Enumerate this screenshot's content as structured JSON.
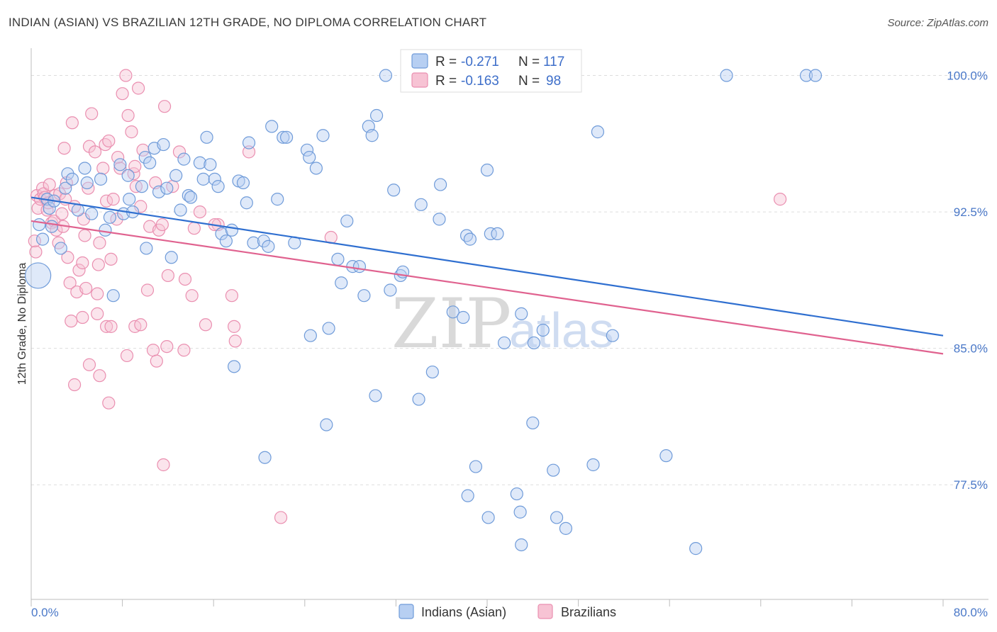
{
  "title": "INDIAN (ASIAN) VS BRAZILIAN 12TH GRADE, NO DIPLOMA CORRELATION CHART",
  "source": "Source: ZipAtlas.com",
  "watermark": {
    "zip": "ZIP",
    "atlas": "atlas"
  },
  "legend_box": {
    "rows": [
      {
        "r_label": "R =",
        "r_value": "-0.271",
        "n_label": "N =",
        "n_value": "117"
      },
      {
        "r_label": "R =",
        "r_value": "-0.163",
        "n_label": "N =",
        "n_value": "98"
      }
    ]
  },
  "colors": {
    "blue_fill": "#b7cff2",
    "blue_stroke": "#6f9bd9",
    "blue_line": "#2f6fd0",
    "pink_fill": "#f7c3d4",
    "pink_stroke": "#ea8fb0",
    "pink_line": "#e0628f",
    "grid": "#dddddd",
    "axis_label": "#4a78c8"
  },
  "chart_data": {
    "type": "scatter",
    "title": "INDIAN (ASIAN) VS BRAZILIAN 12TH GRADE, NO DIPLOMA CORRELATION CHART",
    "xlabel": "",
    "ylabel": "12th Grade, No Diploma",
    "xlim": [
      0,
      80
    ],
    "ylim": [
      71.2,
      101.5
    ],
    "x_tick_labels": [
      "0.0%",
      "80.0%"
    ],
    "y_ticks": [
      77.5,
      85.0,
      92.5,
      100.0
    ],
    "y_tick_labels": [
      "77.5%",
      "85.0%",
      "92.5%",
      "100.0%"
    ],
    "series": [
      {
        "name": "Indians (Asian)",
        "color": "blue",
        "r": -0.271,
        "n": 117,
        "trend": {
          "x": [
            0,
            80
          ],
          "y": [
            93.3,
            85.7
          ]
        },
        "points": [
          [
            0.6,
            89.0
          ],
          [
            0.7,
            91.8
          ],
          [
            1.0,
            91.0
          ],
          [
            1.4,
            93.2
          ],
          [
            1.6,
            92.7
          ],
          [
            1.8,
            91.7
          ],
          [
            2.0,
            93.1
          ],
          [
            2.6,
            90.5
          ],
          [
            3.0,
            93.8
          ],
          [
            3.2,
            94.6
          ],
          [
            3.6,
            94.3
          ],
          [
            4.1,
            92.6
          ],
          [
            4.7,
            94.9
          ],
          [
            4.9,
            94.1
          ],
          [
            5.3,
            92.4
          ],
          [
            6.1,
            94.3
          ],
          [
            6.5,
            91.5
          ],
          [
            6.9,
            92.2
          ],
          [
            7.2,
            87.9
          ],
          [
            7.8,
            95.1
          ],
          [
            8.1,
            92.4
          ],
          [
            8.5,
            94.5
          ],
          [
            8.6,
            93.2
          ],
          [
            8.9,
            92.5
          ],
          [
            9.7,
            93.9
          ],
          [
            10.0,
            95.5
          ],
          [
            10.1,
            90.5
          ],
          [
            10.4,
            95.2
          ],
          [
            10.8,
            96.0
          ],
          [
            11.2,
            93.6
          ],
          [
            11.6,
            96.2
          ],
          [
            11.9,
            93.8
          ],
          [
            12.3,
            90.0
          ],
          [
            12.7,
            94.5
          ],
          [
            13.1,
            92.6
          ],
          [
            13.4,
            95.4
          ],
          [
            13.8,
            93.4
          ],
          [
            14.0,
            93.3
          ],
          [
            14.8,
            95.2
          ],
          [
            15.1,
            94.3
          ],
          [
            15.4,
            96.6
          ],
          [
            15.7,
            95.1
          ],
          [
            16.1,
            94.3
          ],
          [
            16.4,
            93.9
          ],
          [
            16.7,
            91.3
          ],
          [
            17.1,
            90.9
          ],
          [
            17.6,
            91.5
          ],
          [
            18.2,
            94.2
          ],
          [
            18.6,
            94.1
          ],
          [
            18.9,
            93.0
          ],
          [
            19.1,
            96.3
          ],
          [
            19.5,
            90.8
          ],
          [
            20.4,
            90.9
          ],
          [
            20.8,
            90.6
          ],
          [
            21.1,
            97.2
          ],
          [
            21.6,
            93.2
          ],
          [
            22.1,
            96.6
          ],
          [
            22.4,
            96.6
          ],
          [
            23.1,
            90.8
          ],
          [
            24.2,
            95.9
          ],
          [
            24.4,
            95.5
          ],
          [
            25.0,
            94.9
          ],
          [
            25.6,
            96.7
          ],
          [
            26.9,
            89.9
          ],
          [
            27.2,
            88.6
          ],
          [
            27.7,
            92.0
          ],
          [
            28.2,
            89.5
          ],
          [
            28.8,
            89.5
          ],
          [
            29.2,
            87.9
          ],
          [
            29.6,
            97.2
          ],
          [
            29.9,
            96.7
          ],
          [
            30.3,
            97.8
          ],
          [
            31.1,
            100.0
          ],
          [
            31.5,
            88.2
          ],
          [
            31.8,
            93.7
          ],
          [
            32.4,
            89.0
          ],
          [
            32.6,
            89.2
          ],
          [
            34.2,
            92.9
          ],
          [
            35.8,
            92.1
          ],
          [
            35.9,
            94.0
          ],
          [
            37.0,
            87.0
          ],
          [
            37.9,
            86.7
          ],
          [
            38.2,
            91.2
          ],
          [
            38.5,
            91.0
          ],
          [
            40.0,
            94.8
          ],
          [
            40.3,
            91.3
          ],
          [
            40.9,
            91.3
          ],
          [
            41.5,
            85.3
          ],
          [
            43.0,
            86.9
          ],
          [
            44.1,
            85.3
          ],
          [
            44.9,
            86.0
          ],
          [
            49.7,
            96.9
          ],
          [
            51.0,
            85.7
          ],
          [
            61.0,
            100.0
          ],
          [
            68.0,
            100.0
          ],
          [
            68.8,
            100.0
          ],
          [
            24.5,
            85.7
          ],
          [
            26.1,
            86.1
          ],
          [
            17.8,
            84.0
          ],
          [
            35.2,
            83.7
          ],
          [
            30.2,
            82.4
          ],
          [
            34.0,
            82.2
          ],
          [
            25.9,
            80.8
          ],
          [
            20.5,
            79.0
          ],
          [
            39.0,
            78.5
          ],
          [
            44.0,
            80.9
          ],
          [
            45.8,
            78.3
          ],
          [
            49.3,
            78.6
          ],
          [
            55.7,
            79.1
          ],
          [
            46.1,
            75.7
          ],
          [
            46.9,
            75.1
          ],
          [
            40.1,
            75.7
          ],
          [
            38.3,
            76.9
          ],
          [
            42.6,
            77.0
          ],
          [
            42.9,
            76.0
          ],
          [
            58.3,
            74.0
          ],
          [
            43.0,
            74.2
          ]
        ]
      },
      {
        "name": "Brazilians",
        "color": "pink",
        "r": -0.163,
        "n": 98,
        "trend": {
          "x": [
            0,
            80
          ],
          "y": [
            92.0,
            84.7
          ]
        },
        "points": [
          [
            0.3,
            90.9
          ],
          [
            0.4,
            90.3
          ],
          [
            0.5,
            93.4
          ],
          [
            0.6,
            92.7
          ],
          [
            0.8,
            93.2
          ],
          [
            1.0,
            93.8
          ],
          [
            1.1,
            93.5
          ],
          [
            1.2,
            93.3
          ],
          [
            1.4,
            92.6
          ],
          [
            1.5,
            93.0
          ],
          [
            1.6,
            94.0
          ],
          [
            1.8,
            91.9
          ],
          [
            2.0,
            92.0
          ],
          [
            2.1,
            93.4
          ],
          [
            2.2,
            91.5
          ],
          [
            2.4,
            90.8
          ],
          [
            2.5,
            93.5
          ],
          [
            2.7,
            92.4
          ],
          [
            2.8,
            91.7
          ],
          [
            2.9,
            96.0
          ],
          [
            3.0,
            93.2
          ],
          [
            3.1,
            94.1
          ],
          [
            3.2,
            90.0
          ],
          [
            3.4,
            88.6
          ],
          [
            3.6,
            97.4
          ],
          [
            3.8,
            92.8
          ],
          [
            4.0,
            88.1
          ],
          [
            4.2,
            89.3
          ],
          [
            4.5,
            89.7
          ],
          [
            4.6,
            92.1
          ],
          [
            4.7,
            91.2
          ],
          [
            4.8,
            88.3
          ],
          [
            5.0,
            93.8
          ],
          [
            5.1,
            96.1
          ],
          [
            5.3,
            97.9
          ],
          [
            5.6,
            95.8
          ],
          [
            5.8,
            88.0
          ],
          [
            5.9,
            89.6
          ],
          [
            6.0,
            90.8
          ],
          [
            6.3,
            94.9
          ],
          [
            6.5,
            96.2
          ],
          [
            6.6,
            93.1
          ],
          [
            6.8,
            96.4
          ],
          [
            7.0,
            89.9
          ],
          [
            7.2,
            93.2
          ],
          [
            7.5,
            92.1
          ],
          [
            7.6,
            95.5
          ],
          [
            7.8,
            94.9
          ],
          [
            8.0,
            99.0
          ],
          [
            8.3,
            100.0
          ],
          [
            8.5,
            97.8
          ],
          [
            8.8,
            96.9
          ],
          [
            9.0,
            94.6
          ],
          [
            9.1,
            95.0
          ],
          [
            9.2,
            93.9
          ],
          [
            9.4,
            99.3
          ],
          [
            9.6,
            92.8
          ],
          [
            9.8,
            95.9
          ],
          [
            10.2,
            88.2
          ],
          [
            10.4,
            91.7
          ],
          [
            10.9,
            94.1
          ],
          [
            11.2,
            91.5
          ],
          [
            11.5,
            91.8
          ],
          [
            11.7,
            98.3
          ],
          [
            12.0,
            89.0
          ],
          [
            12.4,
            93.9
          ],
          [
            13.0,
            95.8
          ],
          [
            13.5,
            88.8
          ],
          [
            14.1,
            87.9
          ],
          [
            14.8,
            92.5
          ],
          [
            15.3,
            86.3
          ],
          [
            16.4,
            91.8
          ],
          [
            17.6,
            87.9
          ],
          [
            17.8,
            86.2
          ],
          [
            17.9,
            85.4
          ],
          [
            19.1,
            95.8
          ],
          [
            6.6,
            86.2
          ],
          [
            5.8,
            86.9
          ],
          [
            4.5,
            86.7
          ],
          [
            3.5,
            86.5
          ],
          [
            3.8,
            83.0
          ],
          [
            5.1,
            84.1
          ],
          [
            6.0,
            83.5
          ],
          [
            6.8,
            82.0
          ],
          [
            7.0,
            86.2
          ],
          [
            8.4,
            84.6
          ],
          [
            9.1,
            86.2
          ],
          [
            9.6,
            86.3
          ],
          [
            10.7,
            84.9
          ],
          [
            11.0,
            84.3
          ],
          [
            11.9,
            85.1
          ],
          [
            13.4,
            84.9
          ],
          [
            14.3,
            91.6
          ],
          [
            16.1,
            91.8
          ],
          [
            26.3,
            91.1
          ],
          [
            65.7,
            93.2
          ],
          [
            11.6,
            78.6
          ],
          [
            21.9,
            75.7
          ]
        ]
      }
    ]
  },
  "bottom_legend": {
    "items": [
      "Indians (Asian)",
      "Brazilians"
    ]
  }
}
